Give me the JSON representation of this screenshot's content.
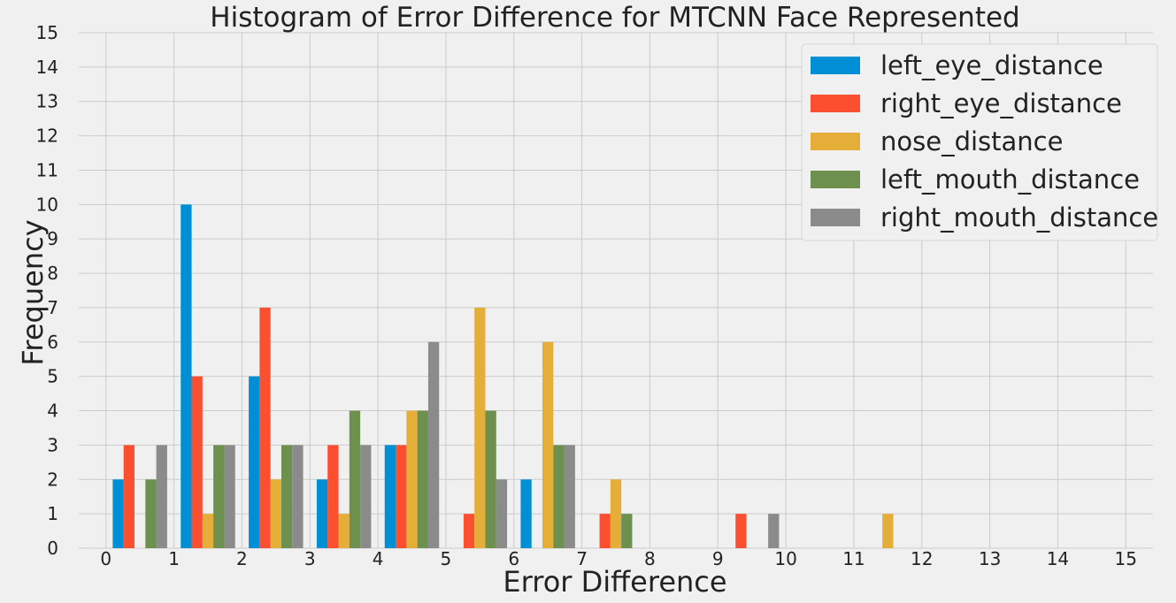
{
  "chart_data": {
    "type": "bar",
    "title": "Histogram of Error Difference for MTCNN Face Represented",
    "xlabel": "Error Difference",
    "ylabel": "Frequency",
    "xlim": [
      -0.4,
      15.4
    ],
    "ylim": [
      0,
      15
    ],
    "xticks": [
      "0",
      "1",
      "2",
      "3",
      "4",
      "5",
      "6",
      "7",
      "8",
      "9",
      "10",
      "11",
      "12",
      "13",
      "14",
      "15"
    ],
    "yticks": [
      "0",
      "1",
      "2",
      "3",
      "4",
      "5",
      "6",
      "7",
      "8",
      "9",
      "10",
      "11",
      "12",
      "13",
      "14",
      "15"
    ],
    "bin_edges": [
      0,
      1,
      2,
      3,
      4,
      5,
      6,
      7,
      8,
      9,
      10,
      11,
      12
    ],
    "grid": true,
    "legend_position": "top-right",
    "series": [
      {
        "name": "left_eye_distance",
        "color": "#008fd5",
        "values": [
          2,
          10,
          5,
          2,
          3,
          0,
          2,
          0,
          0,
          0,
          0,
          0
        ]
      },
      {
        "name": "right_eye_distance",
        "color": "#fc4f30",
        "values": [
          3,
          5,
          7,
          3,
          3,
          1,
          0,
          1,
          0,
          1,
          0,
          0
        ]
      },
      {
        "name": "nose_distance",
        "color": "#e5ae38",
        "values": [
          0,
          1,
          2,
          1,
          4,
          7,
          6,
          2,
          0,
          0,
          0,
          1
        ]
      },
      {
        "name": "left_mouth_distance",
        "color": "#6d904f",
        "values": [
          2,
          3,
          3,
          4,
          4,
          4,
          3,
          1,
          0,
          0,
          0,
          0
        ]
      },
      {
        "name": "right_mouth_distance",
        "color": "#8b8b8b",
        "values": [
          3,
          3,
          3,
          3,
          6,
          2,
          3,
          0,
          0,
          1,
          0,
          0
        ]
      }
    ]
  }
}
